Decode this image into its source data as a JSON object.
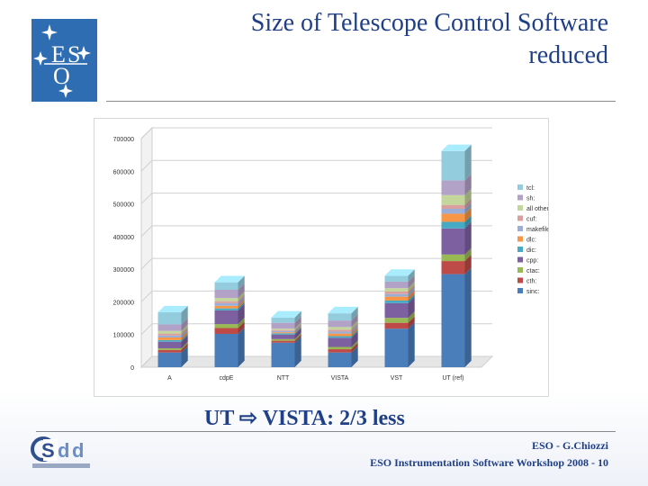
{
  "logo": {
    "name": "eso-logo",
    "letters": "ESO"
  },
  "slide": {
    "title_line1": "Size of Telescope Control Software",
    "title_line2": "reduced",
    "subtitle_left": "UT",
    "subtitle_arrow": "⇨",
    "subtitle_right": "VISTA: 2/3 less",
    "footer_line1": "ESO - G.Chiozzi",
    "footer_line2": "ESO Instrumentation Software Workshop 2008 - 10"
  },
  "colors": {
    "title": "#1f3f86",
    "logo_bg": "#2f6db3",
    "series": {
      "sinc": "#4a7ebb",
      "cth": "#be4b48",
      "ctac": "#98b954",
      "cpp": "#7d60a0",
      "dic": "#46aac5",
      "dlc": "#f79646",
      "makefile": "#9aaed7",
      "cuf": "#d9a09f",
      "all_other": "#c3d69b",
      "sh": "#b3a2c7",
      "tcl": "#93cddd"
    }
  },
  "chart_data": {
    "type": "bar",
    "stacked": true,
    "categories": [
      "A",
      "cdpE",
      "NTT",
      "VISTA",
      "VST",
      "UT (ref)"
    ],
    "ylim": [
      0,
      700000
    ],
    "yticks": [
      "700000",
      "600000",
      "500000",
      "400000",
      "300000",
      "200000",
      "100000",
      "0"
    ],
    "ytick_values": [
      700000,
      600000,
      500000,
      400000,
      300000,
      200000,
      100000,
      0
    ],
    "legend_position": "right",
    "grid": true,
    "series": [
      {
        "name": "sinc:",
        "key": "sinc",
        "values": [
          45000,
          102000,
          75000,
          45000,
          118000,
          285000
        ]
      },
      {
        "name": "cth:",
        "key": "cth",
        "values": [
          8000,
          18000,
          6000,
          10000,
          18000,
          40000
        ]
      },
      {
        "name": "ctac:",
        "key": "ctac",
        "values": [
          5000,
          12000,
          5000,
          7000,
          15000,
          20000
        ]
      },
      {
        "name": "cpp:",
        "key": "cpp",
        "values": [
          20000,
          42000,
          14000,
          28000,
          45000,
          80000
        ]
      },
      {
        "name": "dic:",
        "key": "dic",
        "values": [
          5000,
          6000,
          4000,
          5000,
          8000,
          20000
        ]
      },
      {
        "name": "dlc:",
        "key": "dlc",
        "values": [
          8000,
          8000,
          3000,
          8000,
          12000,
          25000
        ]
      },
      {
        "name": "makefile:",
        "key": "makefile",
        "values": [
          6000,
          8000,
          4000,
          6000,
          8000,
          15000
        ]
      },
      {
        "name": "cuf:",
        "key": "cuf",
        "values": [
          6000,
          6000,
          3000,
          6000,
          8000,
          12000
        ]
      },
      {
        "name": "all other:",
        "key": "all_other",
        "values": [
          8000,
          10000,
          4000,
          8000,
          10000,
          30000
        ]
      },
      {
        "name": "sh:",
        "key": "sh",
        "values": [
          20000,
          25000,
          18000,
          20000,
          20000,
          45000
        ]
      },
      {
        "name": "tcl:",
        "key": "tcl",
        "values": [
          37000,
          23000,
          16000,
          22000,
          18000,
          90000
        ]
      }
    ]
  }
}
